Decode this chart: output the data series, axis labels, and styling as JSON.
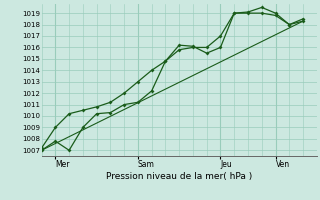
{
  "xlabel": "Pression niveau de la mer( hPa )",
  "bg_color": "#cce8e0",
  "grid_color": "#99ccbb",
  "line_color": "#1a5c1a",
  "ylim": [
    1006.5,
    1019.8
  ],
  "yticks": [
    1007,
    1008,
    1009,
    1010,
    1011,
    1012,
    1013,
    1014,
    1015,
    1016,
    1017,
    1018,
    1019
  ],
  "day_labels": [
    "Mer",
    "Sam",
    "Jeu",
    "Ven"
  ],
  "day_positions": [
    0.5,
    3.5,
    6.5,
    8.5
  ],
  "xmin": 0,
  "xmax": 10.0,
  "line1_x": [
    0.0,
    0.5,
    1.0,
    1.5,
    2.0,
    2.5,
    3.0,
    3.5,
    4.0,
    4.5,
    5.0,
    5.5,
    6.0,
    6.5,
    7.0,
    7.5,
    8.0,
    8.5,
    9.0,
    9.5
  ],
  "line1_y": [
    1007.0,
    1007.8,
    1007.0,
    1009.0,
    1010.2,
    1010.3,
    1011.0,
    1011.2,
    1012.2,
    1014.8,
    1016.2,
    1016.1,
    1015.5,
    1016.0,
    1019.0,
    1019.1,
    1019.5,
    1019.0,
    1018.0,
    1018.5
  ],
  "line2_x": [
    0.0,
    0.5,
    1.0,
    1.5,
    2.0,
    2.5,
    3.0,
    3.5,
    4.0,
    4.5,
    5.0,
    5.5,
    6.0,
    6.5,
    7.0,
    7.5,
    8.0,
    8.5,
    9.0,
    9.5
  ],
  "line2_y": [
    1007.2,
    1009.0,
    1010.2,
    1010.5,
    1010.8,
    1011.2,
    1012.0,
    1013.0,
    1014.0,
    1014.8,
    1015.8,
    1016.0,
    1016.0,
    1017.0,
    1019.0,
    1019.0,
    1019.0,
    1018.8,
    1018.0,
    1018.3
  ],
  "line3_x": [
    0.0,
    9.5
  ],
  "line3_y": [
    1007.0,
    1018.3
  ],
  "vline_positions": [
    0.5,
    3.5,
    6.5,
    8.5
  ]
}
